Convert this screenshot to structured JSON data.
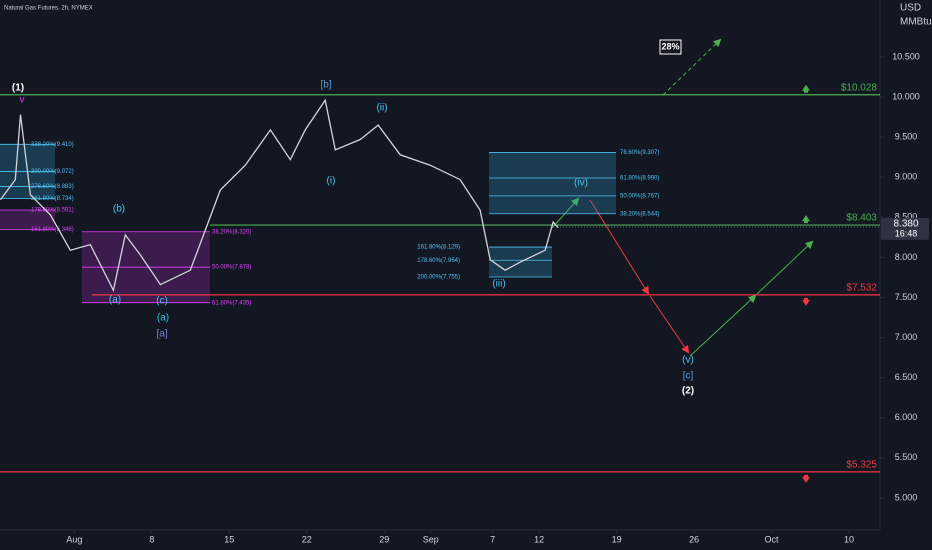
{
  "chart_data": {
    "type": "line",
    "title": "Natural Gas Futures, 2h, NYMEX",
    "currency": "USD",
    "unit": "MMBtu",
    "color": "#d1d4dc",
    "xlim": [
      -4.8,
      52
    ],
    "ylim": [
      4.6,
      11.21
    ],
    "xticks": [
      {
        "value": 0,
        "label": "Aug"
      },
      {
        "value": 5,
        "label": "8"
      },
      {
        "value": 10,
        "label": "15"
      },
      {
        "value": 15,
        "label": "22"
      },
      {
        "value": 20,
        "label": "29"
      },
      {
        "value": 23,
        "label": "Sep"
      },
      {
        "value": 27,
        "label": "7"
      },
      {
        "value": 30,
        "label": "12"
      },
      {
        "value": 35,
        "label": "19"
      },
      {
        "value": 40,
        "label": "26"
      },
      {
        "value": 45,
        "label": "Oct"
      },
      {
        "value": 50,
        "label": "10"
      }
    ],
    "yticks": [
      {
        "value": 5,
        "label": "5.000"
      },
      {
        "value": 5.5,
        "label": "5.500"
      },
      {
        "value": 6,
        "label": "6.000"
      },
      {
        "value": 6.5,
        "label": "6.500"
      },
      {
        "value": 7,
        "label": "7.000"
      },
      {
        "value": 7.5,
        "label": "7.500"
      },
      {
        "value": 8,
        "label": "8.000"
      },
      {
        "value": 8.5,
        "label": "8.500"
      },
      {
        "value": 9,
        "label": "9.000"
      },
      {
        "value": 9.5,
        "label": "9.500"
      },
      {
        "value": 10,
        "label": "10.000"
      },
      {
        "value": 10.5,
        "label": "10.500"
      }
    ],
    "x": [
      -4.77,
      -3.81,
      -3.48,
      -2.84,
      -1.55,
      -0.26,
      1.03,
      2.52,
      3.29,
      4.26,
      5.55,
      7.48,
      8.45,
      9.42,
      11.03,
      12.65,
      13.94,
      14.9,
      16.19,
      16.84,
      18.45,
      19.61,
      21.03,
      22.97,
      24.9,
      26.19,
      26.84,
      27.81,
      28.77,
      30.39,
      30.9,
      31.23
    ],
    "values": [
      8.72,
      8.97,
      9.78,
      8.78,
      8.53,
      8.09,
      8.16,
      7.59,
      8.28,
      8.03,
      7.66,
      7.84,
      8.34,
      8.84,
      9.15,
      9.59,
      9.22,
      9.59,
      9.96,
      9.34,
      9.47,
      9.65,
      9.28,
      9.15,
      8.97,
      8.59,
      7.97,
      7.84,
      7.94,
      8.09,
      8.44,
      8.37
    ],
    "levels": [
      {
        "value": 10.028,
        "label": "$10.028",
        "color": "#4caf50",
        "direction": "up"
      },
      {
        "value": 8.403,
        "label": "$8.403",
        "color": "#4caf50",
        "direction": "up"
      },
      {
        "value": 7.532,
        "label": "$7.532",
        "color": "#f23645",
        "direction": "down"
      },
      {
        "value": 5.325,
        "label": "$5.325",
        "color": "#f23645",
        "direction": "down"
      }
    ],
    "last_price": {
      "value": 8.38,
      "label": "8.380"
    },
    "countdown": "16:48",
    "projection_label": "28%",
    "fib_zones": [
      {
        "color": "#2a8fbd",
        "levels": [
          {
            "value": 9.41,
            "label": "338.20%(9.410)"
          },
          {
            "value": 9.072,
            "label": "300.00%(9.072)"
          },
          {
            "value": 8.883,
            "label": "278.60%(8.883)"
          },
          {
            "value": 8.734,
            "label": "261.80%(8.734)"
          }
        ]
      },
      {
        "color": "#9c27b0",
        "levels": [
          {
            "value": 8.591,
            "label": "178.60%(8.591)"
          },
          {
            "value": 8.348,
            "label": "161.80%(8.348)"
          }
        ]
      },
      {
        "color": "#9c27b0",
        "levels": [
          {
            "value": 8.32,
            "label": "38.20%(8.320)"
          },
          {
            "value": 7.878,
            "label": "50.00%(7.878)"
          },
          {
            "value": 7.435,
            "label": "61.80%(7.435)"
          }
        ]
      },
      {
        "color": "#2a8fbd",
        "levels": [
          {
            "value": 9.307,
            "label": "78.60%(9.307)"
          },
          {
            "value": 8.99,
            "label": "61.80%(8.990)"
          },
          {
            "value": 8.767,
            "label": "50.00%(8.767)"
          },
          {
            "value": 8.544,
            "label": "38.20%(8.544)"
          }
        ]
      },
      {
        "color": "#2a8fbd",
        "levels": [
          {
            "value": 8.129,
            "label": "161.80%(8.129)"
          },
          {
            "value": 7.964,
            "label": "178.60%(7.964)"
          },
          {
            "value": 7.755,
            "label": "200.00%(7.755)"
          }
        ]
      }
    ],
    "wave_labels": [
      {
        "text": "(1)",
        "color": "#ffffff"
      },
      {
        "text": "v",
        "color": "#e040fb"
      },
      {
        "text": "[b]",
        "color": "#5b9bd5"
      },
      {
        "text": "(i)",
        "color": "#4fc3f7"
      },
      {
        "text": "(ii)",
        "color": "#4fc3f7"
      },
      {
        "text": "(iii)",
        "color": "#4fc3f7"
      },
      {
        "text": "(iv)",
        "color": "#4fc3f7"
      },
      {
        "text": "(b)",
        "color": "#4fc3f7"
      },
      {
        "text": "(a)",
        "color": "#4fc3f7"
      },
      {
        "text": "(c)",
        "color": "#4fc3f7"
      },
      {
        "text": "(a)",
        "color": "#26c6da"
      },
      {
        "text": "[a]",
        "color": "#7986cb"
      },
      {
        "text": "(v)",
        "color": "#4fc3f7"
      },
      {
        "text": "[c]",
        "color": "#5b9bd5"
      },
      {
        "text": "(2)",
        "color": "#ffffff"
      }
    ]
  }
}
